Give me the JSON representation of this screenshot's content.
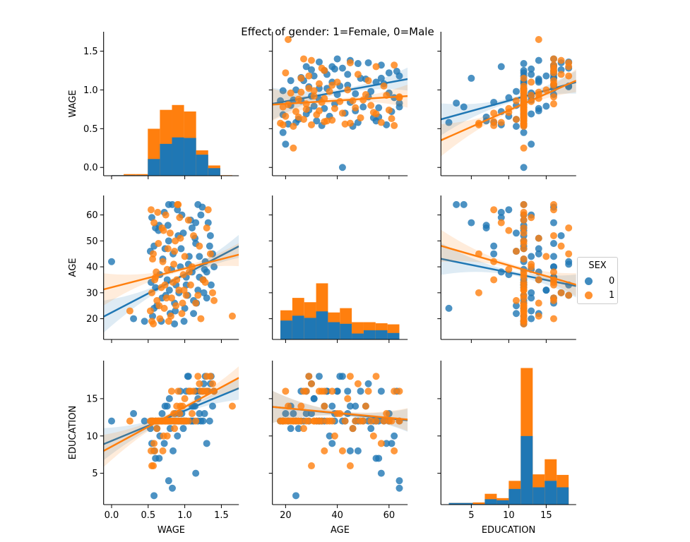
{
  "title": "Effect of gender: 1=Female, 0=Male",
  "legend": {
    "title": "SEX",
    "entries": [
      {
        "label": "0",
        "color": "#1f77b4"
      },
      {
        "label": "1",
        "color": "#ff7f0e"
      }
    ]
  },
  "chart_data": {
    "type": "pairplot",
    "hue": "SEX",
    "colors": {
      "0": "#1f77b4",
      "1": "#ff7f0e"
    },
    "variables": [
      {
        "name": "WAGE",
        "xlim": [
          -0.109,
          1.739
        ],
        "ylim": [
          -0.107,
          1.75
        ],
        "xticks": [
          "0.0",
          "0.5",
          "1.0",
          "1.5"
        ],
        "yticks": [
          "0.0",
          "0.5",
          "1.0",
          "1.5"
        ]
      },
      {
        "name": "AGE",
        "xlim": [
          14.9,
          67.2
        ],
        "ylim": [
          12.0,
          67.5
        ],
        "xticks": [
          "20",
          "40",
          "60"
        ],
        "yticks": [
          "20",
          "30",
          "40",
          "50",
          "60"
        ]
      },
      {
        "name": "EDUCATION",
        "xlim": [
          0.94,
          19.0
        ],
        "ylim": [
          0.8,
          20.1
        ],
        "xticks": [
          "5",
          "10",
          "15"
        ],
        "yticks": [
          "5",
          "10",
          "15"
        ]
      }
    ],
    "histograms": {
      "WAGE": {
        "range": [
          0,
          1.65
        ],
        "counts": {
          "0": [
            1,
            1,
            1,
            31,
            59,
            71,
            70,
            39,
            14,
            0
          ],
          "1": [
            0,
            2,
            2,
            56,
            63,
            60,
            49,
            8,
            5,
            1
          ]
        }
      },
      "AGE": {
        "range": [
          18,
          64
        ],
        "counts": {
          "0": [
            35,
            44,
            40,
            52,
            32,
            29,
            11,
            17,
            17,
            12
          ],
          "1": [
            19,
            33,
            29,
            52,
            18,
            29,
            21,
            15,
            13,
            16
          ]
        }
      },
      "EDUCATION": {
        "range": [
          2,
          18
        ],
        "counts": {
          "0": [
            3,
            3,
            1,
            10,
            8,
            29,
            127,
            32,
            44,
            32
          ],
          "1": [
            0,
            0,
            3,
            10,
            4,
            15,
            126,
            24,
            40,
            23
          ]
        }
      }
    },
    "regressions": [
      {
        "y": "WAGE",
        "x": "AGE",
        "sex": "0",
        "from": [
          14.9,
          0.82
        ],
        "to": [
          67.2,
          1.14
        ]
      },
      {
        "y": "WAGE",
        "x": "AGE",
        "sex": "1",
        "from": [
          14.9,
          0.81
        ],
        "to": [
          67.2,
          0.92
        ]
      },
      {
        "y": "WAGE",
        "x": "EDUCATION",
        "sex": "0",
        "from": [
          0.94,
          0.62
        ],
        "to": [
          19.0,
          1.1
        ]
      },
      {
        "y": "WAGE",
        "x": "EDUCATION",
        "sex": "1",
        "from": [
          0.94,
          0.35
        ],
        "to": [
          19.0,
          1.12
        ]
      },
      {
        "y": "AGE",
        "x": "WAGE",
        "sex": "0",
        "from": [
          -0.109,
          20.8
        ],
        "to": [
          1.739,
          47.9
        ]
      },
      {
        "y": "AGE",
        "x": "WAGE",
        "sex": "1",
        "from": [
          -0.109,
          31.3
        ],
        "to": [
          1.739,
          44.7
        ]
      },
      {
        "y": "AGE",
        "x": "EDUCATION",
        "sex": "0",
        "from": [
          0.94,
          43.1
        ],
        "to": [
          19.0,
          32.6
        ]
      },
      {
        "y": "AGE",
        "x": "EDUCATION",
        "sex": "1",
        "from": [
          0.94,
          48.1
        ],
        "to": [
          19.0,
          33.1
        ]
      },
      {
        "y": "EDUCATION",
        "x": "WAGE",
        "sex": "0",
        "from": [
          -0.109,
          8.9
        ],
        "to": [
          1.739,
          16.4
        ]
      },
      {
        "y": "EDUCATION",
        "x": "WAGE",
        "sex": "1",
        "from": [
          -0.109,
          8.0
        ],
        "to": [
          1.739,
          17.8
        ]
      },
      {
        "y": "EDUCATION",
        "x": "AGE",
        "sex": "0",
        "from": [
          14.9,
          13.9
        ],
        "to": [
          67.2,
          12.1
        ]
      },
      {
        "y": "EDUCATION",
        "x": "AGE",
        "sex": "1",
        "from": [
          14.9,
          13.9
        ],
        "to": [
          67.2,
          12.2
        ]
      }
    ],
    "point_columns": [
      "WAGE",
      "AGE",
      "EDUCATION"
    ],
    "points": {
      "0": [
        [
          0.0,
          42,
          12
        ],
        [
          0.58,
          24,
          2
        ],
        [
          0.3,
          20,
          13
        ],
        [
          0.45,
          19,
          12
        ],
        [
          0.83,
          64,
          3
        ],
        [
          0.78,
          64,
          4
        ],
        [
          1.15,
          57,
          5
        ],
        [
          1.3,
          38,
          9
        ],
        [
          0.6,
          55,
          7
        ],
        [
          0.65,
          56,
          7
        ],
        [
          1.38,
          45,
          14
        ],
        [
          1.4,
          40,
          16
        ],
        [
          1.36,
          33,
          18
        ],
        [
          1.35,
          52,
          17
        ],
        [
          1.3,
          28,
          16
        ],
        [
          1.25,
          35,
          12
        ],
        [
          1.22,
          60,
          12
        ],
        [
          1.2,
          44,
          13
        ],
        [
          1.18,
          31,
          15
        ],
        [
          1.15,
          49,
          16
        ],
        [
          1.12,
          27,
          12
        ],
        [
          1.1,
          38,
          14
        ],
        [
          1.08,
          58,
          12
        ],
        [
          1.05,
          41,
          18
        ],
        [
          1.02,
          36,
          16
        ],
        [
          1.0,
          24,
          12
        ],
        [
          0.98,
          53,
          11
        ],
        [
          0.95,
          47,
          12
        ],
        [
          0.92,
          30,
          13
        ],
        [
          0.9,
          62,
          10
        ],
        [
          0.88,
          33,
          12
        ],
        [
          0.86,
          26,
          12
        ],
        [
          0.84,
          45,
          8
        ],
        [
          0.82,
          39,
          12
        ],
        [
          0.8,
          22,
          11
        ],
        [
          0.78,
          50,
          12
        ],
        [
          0.76,
          35,
          14
        ],
        [
          0.74,
          29,
          12
        ],
        [
          0.72,
          61,
          9
        ],
        [
          0.7,
          43,
          12
        ],
        [
          0.68,
          19,
          12
        ],
        [
          0.66,
          37,
          10
        ],
        [
          0.64,
          54,
          12
        ],
        [
          0.62,
          25,
          11
        ],
        [
          0.6,
          32,
          12
        ],
        [
          0.58,
          48,
          8
        ],
        [
          0.56,
          21,
          12
        ],
        [
          0.55,
          59,
          9
        ],
        [
          0.54,
          34,
          12
        ],
        [
          0.53,
          46,
          11
        ],
        [
          1.32,
          57,
          16
        ],
        [
          1.28,
          42,
          18
        ],
        [
          1.26,
          30,
          17
        ],
        [
          1.24,
          63,
          16
        ],
        [
          1.2,
          36,
          16
        ],
        [
          1.16,
          26,
          16
        ],
        [
          1.14,
          51,
          14
        ],
        [
          1.06,
          44,
          16
        ],
        [
          1.04,
          29,
          18
        ],
        [
          0.96,
          60,
          13
        ],
        [
          0.94,
          40,
          16
        ],
        [
          0.87,
          23,
          13
        ],
        [
          0.79,
          31,
          15
        ],
        [
          0.73,
          47,
          14
        ],
        [
          0.69,
          28,
          13
        ],
        [
          1.1,
          55,
          12
        ],
        [
          0.99,
          19,
          12
        ],
        [
          0.91,
          52,
          12
        ],
        [
          1.34,
          48,
          12
        ],
        [
          1.18,
          64,
          12
        ],
        [
          0.86,
          18,
          12
        ],
        [
          1.02,
          33,
          12
        ],
        [
          1.27,
          39,
          13
        ],
        [
          0.77,
          56,
          12
        ],
        [
          1.12,
          22,
          14
        ]
      ],
      "1": [
        [
          1.65,
          21,
          14
        ],
        [
          0.25,
          23,
          12
        ],
        [
          1.4,
          27,
          16
        ],
        [
          1.38,
          30,
          17
        ],
        [
          1.3,
          55,
          18
        ],
        [
          1.32,
          62,
          16
        ],
        [
          1.25,
          35,
          16
        ],
        [
          1.2,
          48,
          17
        ],
        [
          1.15,
          26,
          12
        ],
        [
          1.1,
          40,
          13
        ],
        [
          1.08,
          33,
          16
        ],
        [
          1.05,
          58,
          12
        ],
        [
          1.02,
          29,
          12
        ],
        [
          1.0,
          44,
          15
        ],
        [
          0.98,
          37,
          12
        ],
        [
          0.96,
          22,
          12
        ],
        [
          0.94,
          51,
          14
        ],
        [
          0.92,
          31,
          12
        ],
        [
          0.9,
          64,
          12
        ],
        [
          0.88,
          25,
          12
        ],
        [
          0.86,
          46,
          11
        ],
        [
          0.84,
          34,
          12
        ],
        [
          0.82,
          28,
          16
        ],
        [
          0.8,
          53,
          12
        ],
        [
          0.78,
          19,
          12
        ],
        [
          0.76,
          39,
          10
        ],
        [
          0.74,
          60,
          12
        ],
        [
          0.72,
          24,
          12
        ],
        [
          0.7,
          42,
          8
        ],
        [
          0.68,
          32,
          12
        ],
        [
          0.66,
          20,
          12
        ],
        [
          0.64,
          49,
          12
        ],
        [
          0.62,
          27,
          11
        ],
        [
          0.6,
          36,
          12
        ],
        [
          0.58,
          57,
          9
        ],
        [
          0.57,
          18,
          12
        ],
        [
          0.56,
          43,
          12
        ],
        [
          0.55,
          30,
          6
        ],
        [
          0.54,
          62,
          8
        ],
        [
          0.53,
          23,
          12
        ],
        [
          1.35,
          45,
          18
        ],
        [
          1.28,
          34,
          16
        ],
        [
          1.18,
          29,
          18
        ],
        [
          1.12,
          52,
          16
        ],
        [
          1.06,
          38,
          16
        ],
        [
          0.97,
          26,
          14
        ],
        [
          0.93,
          59,
          13
        ],
        [
          0.89,
          35,
          14
        ],
        [
          0.85,
          41,
          13
        ],
        [
          0.81,
          21,
          12
        ],
        [
          0.77,
          47,
          12
        ],
        [
          0.73,
          33,
          12
        ],
        [
          0.69,
          55,
          12
        ],
        [
          0.65,
          25,
          12
        ],
        [
          0.61,
          38,
          12
        ],
        [
          0.57,
          45,
          6
        ],
        [
          0.55,
          19,
          12
        ],
        [
          0.99,
          31,
          12
        ],
        [
          0.87,
          50,
          12
        ],
        [
          0.75,
          28,
          12
        ],
        [
          0.63,
          61,
          12
        ],
        [
          1.22,
          20,
          16
        ],
        [
          0.59,
          35,
          8
        ],
        [
          0.71,
          54,
          10
        ],
        [
          0.91,
          64,
          16
        ]
      ]
    }
  }
}
